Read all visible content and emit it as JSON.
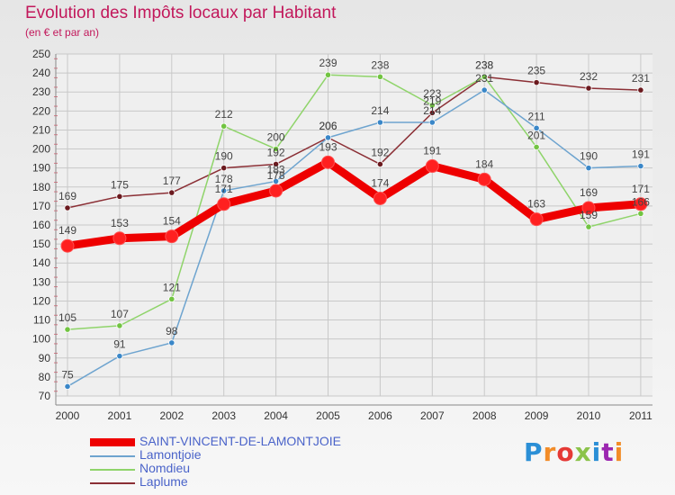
{
  "title": "Evolution des Impôts locaux par Habitant",
  "subtitle": "(en € et par an)",
  "logo": "Proxiti",
  "logo_colors": [
    "#2b8fd6",
    "#f28c28",
    "#e53935",
    "#8bc34a",
    "#2b8fd6",
    "#9c27b0",
    "#f28c28"
  ],
  "chart_data": {
    "type": "line",
    "x": [
      2000,
      2001,
      2002,
      2003,
      2004,
      2005,
      2006,
      2007,
      2008,
      2009,
      2010,
      2011
    ],
    "yticks": [
      70,
      80,
      90,
      100,
      110,
      120,
      130,
      140,
      150,
      160,
      170,
      180,
      190,
      200,
      210,
      220,
      230,
      240,
      250
    ],
    "ylim": [
      70,
      250
    ],
    "grid": true,
    "legend_position": "bottom-left",
    "series": [
      {
        "name": "SAINT-VINCENT-DE-LAMONTJOIE",
        "values": [
          149,
          153,
          154,
          171,
          178,
          193,
          174,
          191,
          184,
          163,
          169,
          171
        ],
        "labels": [
          "149",
          "153",
          "154",
          "171",
          "178",
          "193",
          "174",
          "191",
          "184",
          "163",
          "169",
          "171"
        ],
        "color": "#ee0000",
        "point_color": "#ff2020",
        "width": 9
      },
      {
        "name": "Lamontjoie",
        "values": [
          75,
          91,
          98,
          178,
          183,
          206,
          214,
          214,
          231,
          211,
          190,
          191
        ],
        "labels": [
          "75",
          "91",
          "98",
          "178",
          "183",
          "206",
          "214",
          "214",
          "231",
          "211",
          "190",
          "191"
        ],
        "color": "#6ea4cf",
        "point_color": "#3a87c8",
        "width": 1.5
      },
      {
        "name": "Nomdieu",
        "values": [
          105,
          107,
          121,
          212,
          200,
          239,
          238,
          223,
          238,
          201,
          159,
          166
        ],
        "labels": [
          "105",
          "107",
          "121",
          "212",
          "200",
          "239",
          "238",
          "223",
          "238",
          "201",
          "159",
          "166"
        ],
        "color": "#8fd46a",
        "point_color": "#72c442",
        "width": 1.5
      },
      {
        "name": "Laplume",
        "values": [
          169,
          175,
          177,
          190,
          192,
          206,
          192,
          219,
          238,
          235,
          232,
          231
        ],
        "labels": [
          "169",
          "175",
          "177",
          "190",
          "192",
          "206",
          "192",
          "219",
          "238",
          "235",
          "232",
          "231"
        ],
        "color": "#8b2f35",
        "point_color": "#6b1a1f",
        "width": 1.5
      }
    ]
  }
}
